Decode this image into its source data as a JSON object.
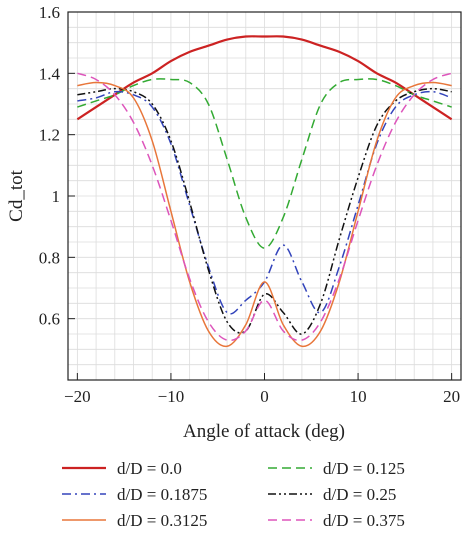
{
  "chart_data": {
    "type": "line",
    "xlabel": "Angle of attack (deg)",
    "ylabel": "Cd_tot",
    "xlim": [
      -21,
      21
    ],
    "ylim": [
      0.4,
      1.6
    ],
    "xticks": [
      -20,
      -10,
      0,
      10,
      20
    ],
    "xtick_labels": [
      "−20",
      "−10",
      "0",
      "10",
      "20"
    ],
    "yticks": [
      0.6,
      0.8,
      1.0,
      1.2,
      1.4,
      1.6
    ],
    "ytick_labels": [
      "0.6",
      "0.8",
      "1",
      "1.2",
      "1.4",
      "1.6"
    ],
    "grid": true,
    "legend_position": "bottom",
    "x": [
      -20,
      -18,
      -16,
      -14,
      -12,
      -10,
      -8,
      -6,
      -4,
      -2,
      0,
      2,
      4,
      6,
      8,
      10,
      12,
      14,
      16,
      18,
      20
    ],
    "series": [
      {
        "name": "d/D = 0.0",
        "color": "#cc2222",
        "dash": "solid",
        "values": [
          1.25,
          1.29,
          1.33,
          1.37,
          1.4,
          1.44,
          1.47,
          1.49,
          1.51,
          1.52,
          1.52,
          1.52,
          1.51,
          1.49,
          1.47,
          1.44,
          1.4,
          1.37,
          1.33,
          1.29,
          1.25
        ]
      },
      {
        "name": "d/D = 0.125",
        "color": "#33aa33",
        "dash": "dashed",
        "values": [
          1.29,
          1.31,
          1.33,
          1.36,
          1.38,
          1.38,
          1.37,
          1.3,
          1.12,
          0.93,
          0.83,
          0.93,
          1.12,
          1.3,
          1.37,
          1.38,
          1.38,
          1.36,
          1.33,
          1.31,
          1.29
        ]
      },
      {
        "name": "d/D = 0.1875",
        "color": "#3344bb",
        "dash": "dashdot",
        "values": [
          1.31,
          1.32,
          1.34,
          1.33,
          1.29,
          1.17,
          0.97,
          0.77,
          0.62,
          0.66,
          0.72,
          0.84,
          0.72,
          0.62,
          0.77,
          0.97,
          1.17,
          1.29,
          1.33,
          1.34,
          1.32
        ]
      },
      {
        "name": "d/D = 0.25",
        "color": "#111111",
        "dash": "dashdotdot",
        "values": [
          1.33,
          1.34,
          1.35,
          1.34,
          1.3,
          1.18,
          0.98,
          0.76,
          0.59,
          0.56,
          0.68,
          0.62,
          0.55,
          0.65,
          0.86,
          1.06,
          1.23,
          1.31,
          1.34,
          1.35,
          1.34
        ]
      },
      {
        "name": "d/D = 0.3125",
        "color": "#e8763a",
        "dash": "solid",
        "values": [
          1.36,
          1.37,
          1.36,
          1.32,
          1.18,
          0.95,
          0.72,
          0.56,
          0.51,
          0.58,
          0.72,
          0.58,
          0.51,
          0.56,
          0.72,
          0.95,
          1.18,
          1.32,
          1.36,
          1.37,
          1.36
        ]
      },
      {
        "name": "d/D = 0.375",
        "color": "#dd55bb",
        "dash": "dashed",
        "values": [
          1.4,
          1.38,
          1.33,
          1.24,
          1.1,
          0.92,
          0.73,
          0.59,
          0.53,
          0.56,
          0.66,
          0.56,
          0.53,
          0.59,
          0.73,
          0.92,
          1.1,
          1.24,
          1.33,
          1.38,
          1.4
        ]
      }
    ]
  }
}
